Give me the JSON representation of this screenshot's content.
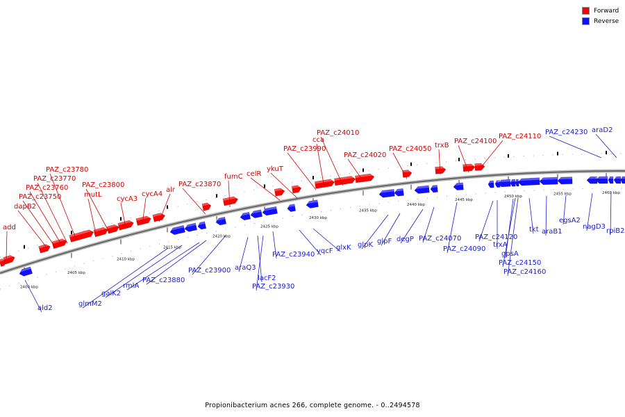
{
  "legend": {
    "forward_label": "Forward",
    "reverse_label": "Reverse",
    "forward_color": "#ff0000",
    "reverse_color": "#1010ff"
  },
  "footer": {
    "caption": "Propionibacterium acnes 266, complete genome. - 0..2494578"
  },
  "ticks": [
    "2400 kbp",
    "2405 kbp",
    "2410 kbp",
    "2415 kbp",
    "2420 kbp",
    "2425 kbp",
    "2430 kbp",
    "2435 kbp",
    "2440 kbp",
    "2445 kbp",
    "2450 kbp",
    "2455 kbp",
    "2460 kbp"
  ],
  "forward_genes": [
    "add",
    "dapB2",
    "PAZ_c23750",
    "PAZ_c23760",
    "PAZ_c23770",
    "PAZ_c23780",
    "mutL",
    "PAZ_c23800",
    "cycA3",
    "cycA4",
    "alr",
    "PAZ_c23870",
    "fumC",
    "celR",
    "ykuT",
    "PAZ_c23990",
    "cca",
    "PAZ_c24010",
    "PAZ_c24020",
    "PAZ_c24050",
    "trxB",
    "PAZ_c24100",
    "PAZ_c24110"
  ],
  "reverse_genes": [
    "ald2",
    "glmM2",
    "galK2",
    "rmlA",
    "PAZ_c23880",
    "PAZ_c23900",
    "araQ3",
    "lacF2",
    "PAZ_c23930",
    "PAZ_c23940",
    "yqcF",
    "glxK",
    "glpK",
    "glpF",
    "degP",
    "PAZ_c24070",
    "PAZ_c24090",
    "PAZ_c24120",
    "trxA",
    "gpsA",
    "PAZ_c24150",
    "PAZ_c24160",
    "tkt",
    "araB1",
    "egsA2",
    "nagD3",
    "rpiB2",
    "PAZ_c24230",
    "araD2"
  ]
}
